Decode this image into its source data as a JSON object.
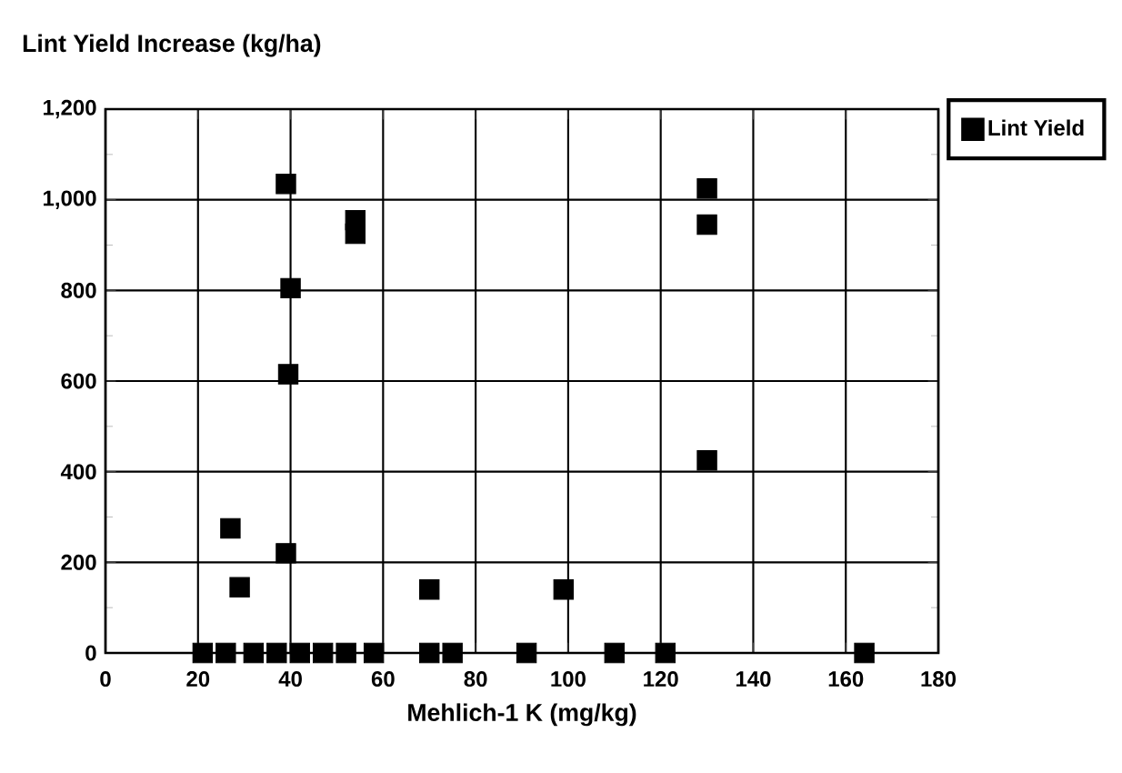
{
  "chart_data": {
    "type": "scatter",
    "title": "Lint Yield Increase (kg/ha)",
    "xlabel": "Mehlich-1 K (mg/kg)",
    "series": [
      {
        "name": "Lint Yield",
        "color": "#000000",
        "x": [
          39,
          54,
          54,
          40,
          39.5,
          27,
          39,
          29,
          70,
          99,
          130,
          130,
          130,
          21,
          26,
          32,
          37,
          42,
          47,
          52,
          58,
          70,
          75,
          91,
          110,
          121,
          164
        ],
        "values": [
          1035,
          955,
          925,
          805,
          615,
          275,
          220,
          145,
          140,
          140,
          1025,
          945,
          425,
          0,
          0,
          0,
          0,
          0,
          0,
          0,
          0,
          0,
          0,
          0,
          0,
          0,
          0
        ]
      }
    ],
    "xlim": [
      0,
      180
    ],
    "xticks": [
      0,
      20,
      40,
      60,
      80,
      100,
      120,
      140,
      160,
      180
    ],
    "ylim": [
      0,
      1200
    ],
    "yticks": [
      0,
      200,
      400,
      {
        "value": 600,
        "label": "600"
      },
      {
        "value": 800,
        "label": "800"
      },
      {
        "value": 1000,
        "label": "1,000"
      },
      {
        "value": 1200,
        "label": "1,200"
      }
    ],
    "grid": true,
    "legend": "top right",
    "marker": "square"
  }
}
